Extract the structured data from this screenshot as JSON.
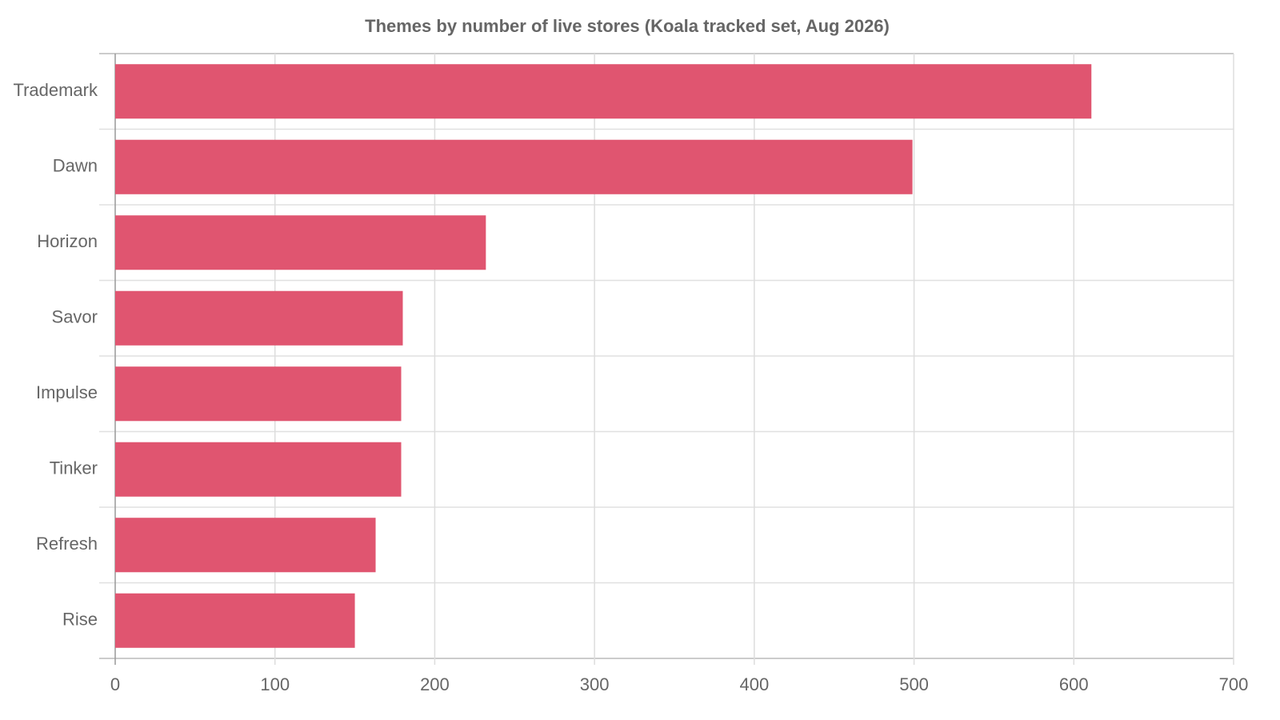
{
  "chart_data": {
    "type": "hbar",
    "title": "Themes by number of live stores (Koala tracked set, Aug 2026)",
    "categories": [
      "Trademark",
      "Dawn",
      "Horizon",
      "Savor",
      "Impulse",
      "Tinker",
      "Refresh",
      "Rise"
    ],
    "values": [
      611,
      499,
      232,
      180,
      179,
      179,
      163,
      150
    ],
    "color": "#e05570",
    "xlim": [
      0,
      700
    ],
    "xticks": [
      0,
      100,
      200,
      300,
      400,
      500,
      600,
      700
    ],
    "grid": true
  }
}
